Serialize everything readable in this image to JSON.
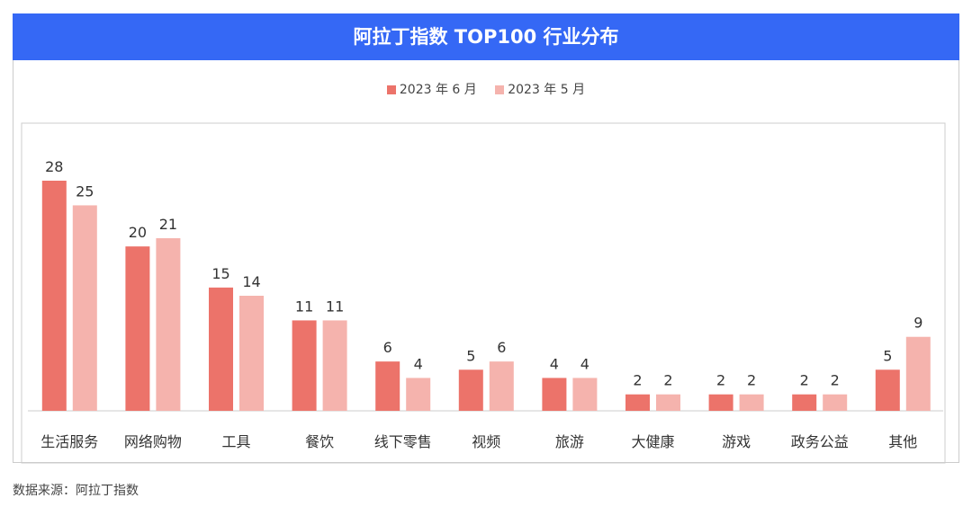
{
  "chart_data": {
    "type": "bar",
    "title": "阿拉丁指数 TOP100 行业分布",
    "categories": [
      "生活服务",
      "网络购物",
      "工具",
      "餐饮",
      "线下零售",
      "视频",
      "旅游",
      "大健康",
      "游戏",
      "政务公益",
      "其他"
    ],
    "series": [
      {
        "name": "2023 年 6 月",
        "color": "#ec736a",
        "values": [
          28,
          20,
          15,
          11,
          6,
          5,
          4,
          2,
          2,
          2,
          5
        ]
      },
      {
        "name": "2023 年 5 月",
        "color": "#f5b3ad",
        "values": [
          25,
          21,
          14,
          11,
          4,
          6,
          4,
          2,
          2,
          2,
          9
        ]
      }
    ],
    "ylim": [
      0,
      28
    ],
    "grid": false,
    "legend_position": "top-center",
    "source": "数据来源：阿拉丁指数"
  }
}
